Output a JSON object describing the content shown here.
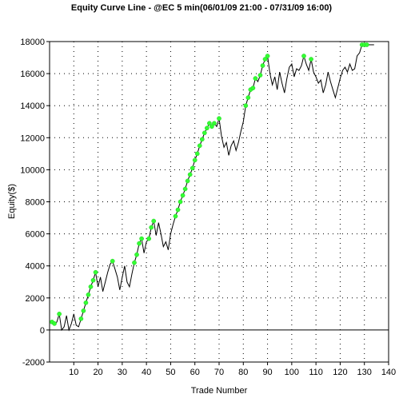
{
  "chart_data": {
    "type": "line",
    "title": "Equity Curve Line - @EC 5 min(06/01/09 21:00 - 07/31/09 16:00)",
    "xlabel": "Trade Number",
    "ylabel": "Equity($)",
    "xlim": [
      0,
      140
    ],
    "ylim": [
      -2000,
      18000
    ],
    "x_ticks": [
      "10",
      "20",
      "30",
      "40",
      "50",
      "60",
      "70",
      "80",
      "90",
      "100",
      "110",
      "120",
      "130",
      "140"
    ],
    "y_ticks": [
      "-2000",
      "0",
      "2000",
      "4000",
      "6000",
      "8000",
      "10000",
      "12000",
      "14000",
      "16000",
      "18000"
    ],
    "x_tick_values": [
      10,
      20,
      30,
      40,
      50,
      60,
      70,
      80,
      90,
      100,
      110,
      120,
      130,
      140
    ],
    "y_tick_values": [
      -2000,
      0,
      2000,
      4000,
      6000,
      8000,
      10000,
      12000,
      14000,
      16000,
      18000
    ],
    "grid": true,
    "line_color": "#000000",
    "marker_color": "#33ff33",
    "series": [
      {
        "x": [
          1,
          2,
          3,
          4,
          5,
          6,
          7,
          8,
          9,
          10,
          11,
          12,
          13,
          14,
          15,
          16,
          17,
          18,
          19,
          20,
          21,
          22,
          23,
          24,
          25,
          26,
          27,
          28,
          29,
          30,
          31,
          32,
          33,
          34,
          35,
          36,
          37,
          38,
          39,
          40,
          41,
          42,
          43,
          44,
          45,
          46,
          47,
          48,
          49,
          50,
          51,
          52,
          53,
          54,
          55,
          56,
          57,
          58,
          59,
          60,
          61,
          62,
          63,
          64,
          65,
          66,
          67,
          68,
          69,
          70,
          71,
          72,
          73,
          74,
          75,
          76,
          77,
          78,
          79,
          80,
          81,
          82,
          83,
          84,
          85,
          86,
          87,
          88,
          89,
          90,
          91,
          92,
          93,
          94,
          95,
          96,
          97,
          98,
          99,
          100,
          101,
          102,
          103,
          104,
          105,
          106,
          107,
          108,
          109,
          110,
          111,
          112,
          113,
          114,
          115,
          116,
          117,
          118,
          119,
          120,
          121,
          122,
          123,
          124,
          125,
          126,
          127,
          128,
          129,
          130,
          131,
          132,
          133,
          134
        ],
        "y": [
          500,
          400,
          500,
          1000,
          0,
          200,
          900,
          0,
          400,
          1000,
          300,
          200,
          700,
          1200,
          1700,
          2200,
          2700,
          3100,
          3600,
          2700,
          3300,
          2400,
          3000,
          3600,
          4100,
          4300,
          3800,
          3300,
          2500,
          3300,
          4000,
          3000,
          2700,
          3500,
          4200,
          4700,
          5400,
          5700,
          4800,
          5500,
          5700,
          6400,
          6800,
          5900,
          6700,
          6000,
          5200,
          5500,
          5000,
          6000,
          6600,
          7100,
          7500,
          8000,
          8400,
          8800,
          9300,
          9700,
          10100,
          10600,
          11000,
          11500,
          11900,
          12300,
          12600,
          12900,
          12700,
          12900,
          12700,
          13200,
          12100,
          11400,
          11700,
          10900,
          11500,
          11800,
          11200,
          11700,
          12400,
          13000,
          14000,
          14500,
          15000,
          15100,
          15700,
          15500,
          15900,
          16500,
          16900,
          17100,
          16000,
          15300,
          15800,
          15000,
          16100,
          15400,
          14800,
          15700,
          16400,
          16600,
          15800,
          16300,
          16200,
          16500,
          17100,
          16600,
          16200,
          16900,
          16100,
          15800,
          15400,
          15600,
          14800,
          15300,
          16100,
          15500,
          15000,
          14500,
          15100,
          15700,
          16200,
          16400,
          16100,
          16600,
          16200,
          16300,
          17100,
          17300,
          17800,
          17800,
          17800,
          17800,
          17800,
          17800
        ],
        "markers": [
          1,
          1,
          0,
          1,
          0,
          0,
          0,
          0,
          0,
          0,
          0,
          0,
          1,
          1,
          1,
          1,
          1,
          1,
          1,
          0,
          0,
          0,
          0,
          0,
          0,
          1,
          0,
          0,
          0,
          0,
          0,
          0,
          0,
          0,
          1,
          1,
          1,
          1,
          0,
          0,
          1,
          1,
          1,
          0,
          0,
          0,
          0,
          0,
          0,
          0,
          0,
          1,
          1,
          1,
          1,
          1,
          1,
          1,
          1,
          1,
          1,
          1,
          1,
          1,
          1,
          1,
          1,
          1,
          0,
          1,
          0,
          0,
          0,
          0,
          0,
          0,
          0,
          0,
          0,
          0,
          1,
          1,
          1,
          1,
          1,
          0,
          1,
          1,
          1,
          1,
          0,
          0,
          0,
          0,
          0,
          0,
          0,
          0,
          0,
          0,
          0,
          0,
          0,
          0,
          1,
          0,
          0,
          1,
          0,
          0,
          0,
          0,
          0,
          0,
          0,
          0,
          0,
          0,
          0,
          0,
          0,
          0,
          0,
          0,
          0,
          0,
          0,
          0,
          1,
          1,
          1,
          0,
          0,
          0
        ]
      }
    ]
  }
}
